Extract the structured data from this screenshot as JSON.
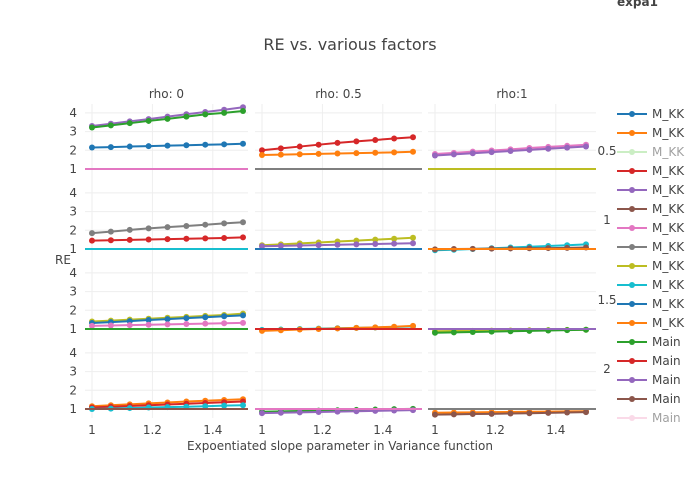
{
  "chart_data": {
    "type": "line",
    "title": "RE vs. various factors",
    "xlabel": "Expoentiated slope parameter in Variance function",
    "ylabel": "RE",
    "legend_title": "expa1",
    "legend_position": "right",
    "grid": true,
    "x": [
      1,
      1.0625,
      1.125,
      1.1875,
      1.25,
      1.3125,
      1.375,
      1.4375,
      1.5
    ],
    "xlim": [
      1,
      1.5
    ],
    "x_ticks": [
      "1",
      "1.2",
      "1.4"
    ],
    "y_ticks": [
      "1",
      "2",
      "3",
      "4"
    ],
    "ylim": [
      0.6,
      4.5
    ],
    "column_facets": [
      "rho: 0",
      "rho: 0.5",
      "rho:1"
    ],
    "row_facets": [
      "0.5",
      "1",
      "1.5",
      "2"
    ],
    "legend": [
      {
        "label": "M_KK",
        "color": "#1f77b4",
        "visible": true
      },
      {
        "label": "M_KK",
        "color": "#ff7f0e",
        "visible": true
      },
      {
        "label": "M_KK",
        "color": "#98df8a",
        "visible": false
      },
      {
        "label": "M_KK",
        "color": "#d62728",
        "visible": true
      },
      {
        "label": "M_KK",
        "color": "#9467bd",
        "visible": true
      },
      {
        "label": "M_KK",
        "color": "#8c564b",
        "visible": true
      },
      {
        "label": "M_KK",
        "color": "#e377c2",
        "visible": true
      },
      {
        "label": "M_KK",
        "color": "#7f7f7f",
        "visible": true
      },
      {
        "label": "M_KK",
        "color": "#bcbd22",
        "visible": true
      },
      {
        "label": "M_KK",
        "color": "#17becf",
        "visible": true
      },
      {
        "label": "M_KK",
        "color": "#1f77b4",
        "visible": true
      },
      {
        "label": "M_KK",
        "color": "#ff7f0e",
        "visible": true
      },
      {
        "label": "Main",
        "color": "#2ca02c",
        "visible": true
      },
      {
        "label": "Main",
        "color": "#d62728",
        "visible": true
      },
      {
        "label": "Main",
        "color": "#9467bd",
        "visible": true
      },
      {
        "label": "Main",
        "color": "#8c564b",
        "visible": true
      },
      {
        "label": "Main",
        "color": "#f7b6d2",
        "visible": false
      }
    ],
    "panels": [
      {
        "row": 0,
        "col": 0,
        "series": [
          {
            "name": "M_KK",
            "color": "#9467bd",
            "values": [
              3.3,
              3.42,
              3.55,
              3.67,
              3.8,
              3.93,
              4.05,
              4.17,
              4.3
            ]
          },
          {
            "name": "Main",
            "color": "#2ca02c",
            "values": [
              3.22,
              3.33,
              3.45,
              3.57,
              3.68,
              3.8,
              3.92,
              4.0,
              4.1
            ]
          },
          {
            "name": "M_KK",
            "color": "#1f77b4",
            "values": [
              2.15,
              2.17,
              2.2,
              2.22,
              2.25,
              2.27,
              2.3,
              2.32,
              2.35
            ]
          },
          {
            "name": "ref",
            "color": "#e377c2",
            "markers": false,
            "values": [
              1,
              1,
              1,
              1,
              1,
              1,
              1,
              1,
              1
            ]
          }
        ]
      },
      {
        "row": 0,
        "col": 1,
        "series": [
          {
            "name": "Main",
            "color": "#d62728",
            "values": [
              2.0,
              2.1,
              2.2,
              2.3,
              2.4,
              2.48,
              2.55,
              2.63,
              2.7
            ]
          },
          {
            "name": "M_KK",
            "color": "#ff7f0e",
            "values": [
              1.75,
              1.77,
              1.79,
              1.81,
              1.83,
              1.85,
              1.87,
              1.89,
              1.92
            ]
          },
          {
            "name": "ref",
            "color": "#7f7f7f",
            "markers": false,
            "values": [
              1,
              1,
              1,
              1,
              1,
              1,
              1,
              1,
              1
            ]
          }
        ]
      },
      {
        "row": 0,
        "col": 2,
        "series": [
          {
            "name": "M_KK",
            "color": "#e377c2",
            "values": [
              1.8,
              1.86,
              1.93,
              1.99,
              2.05,
              2.12,
              2.18,
              2.24,
              2.3
            ]
          },
          {
            "name": "Main",
            "color": "#9467bd",
            "values": [
              1.72,
              1.78,
              1.84,
              1.9,
              1.96,
              2.02,
              2.08,
              2.14,
              2.2
            ]
          },
          {
            "name": "ref",
            "color": "#bcbd22",
            "markers": false,
            "values": [
              1,
              1,
              1,
              1,
              1,
              1,
              1,
              1,
              1
            ]
          }
        ]
      },
      {
        "row": 1,
        "col": 0,
        "series": [
          {
            "name": "M_KK",
            "color": "#7f7f7f",
            "values": [
              1.85,
              1.93,
              2.02,
              2.1,
              2.17,
              2.23,
              2.3,
              2.37,
              2.43
            ]
          },
          {
            "name": "Main",
            "color": "#d62728",
            "values": [
              1.45,
              1.47,
              1.49,
              1.51,
              1.53,
              1.55,
              1.57,
              1.59,
              1.62
            ]
          },
          {
            "name": "ref",
            "color": "#17becf",
            "markers": false,
            "values": [
              1,
              1,
              1,
              1,
              1,
              1,
              1,
              1,
              1
            ]
          }
        ]
      },
      {
        "row": 1,
        "col": 1,
        "series": [
          {
            "name": "M_KK",
            "color": "#bcbd22",
            "values": [
              1.2,
              1.25,
              1.3,
              1.35,
              1.4,
              1.45,
              1.5,
              1.55,
              1.6
            ]
          },
          {
            "name": "Main",
            "color": "#9467bd",
            "values": [
              1.15,
              1.17,
              1.19,
              1.21,
              1.23,
              1.25,
              1.27,
              1.29,
              1.31
            ]
          },
          {
            "name": "ref",
            "color": "#1f77b4",
            "markers": false,
            "values": [
              1,
              1,
              1,
              1,
              1,
              1,
              1,
              1,
              1
            ]
          }
        ]
      },
      {
        "row": 1,
        "col": 2,
        "series": [
          {
            "name": "M_KK",
            "color": "#17becf",
            "values": [
              0.93,
              0.96,
              1.0,
              1.04,
              1.08,
              1.12,
              1.16,
              1.2,
              1.25
            ]
          },
          {
            "name": "Main",
            "color": "#8c564b",
            "values": [
              0.98,
              1.0,
              1.01,
              1.02,
              1.03,
              1.04,
              1.05,
              1.06,
              1.08
            ]
          },
          {
            "name": "ref",
            "color": "#ff7f0e",
            "markers": false,
            "values": [
              1,
              1,
              1,
              1,
              1,
              1,
              1,
              1,
              1
            ]
          }
        ]
      },
      {
        "row": 2,
        "col": 0,
        "series": [
          {
            "name": "M_KK",
            "color": "#bcbd22",
            "values": [
              1.4,
              1.45,
              1.5,
              1.55,
              1.6,
              1.65,
              1.7,
              1.75,
              1.82
            ]
          },
          {
            "name": "M_KK",
            "color": "#1f77b4",
            "values": [
              1.32,
              1.37,
              1.42,
              1.48,
              1.53,
              1.58,
              1.63,
              1.68,
              1.73
            ]
          },
          {
            "name": "M_KK",
            "color": "#e377c2",
            "values": [
              1.17,
              1.19,
              1.21,
              1.23,
              1.25,
              1.27,
              1.29,
              1.31,
              1.33
            ]
          },
          {
            "name": "ref",
            "color": "#2ca02c",
            "markers": false,
            "values": [
              1,
              1,
              1,
              1,
              1,
              1,
              1,
              1,
              1
            ]
          }
        ]
      },
      {
        "row": 2,
        "col": 1,
        "series": [
          {
            "name": "M_KK",
            "color": "#17becf",
            "values": [
              0.95,
              0.97,
              1.0,
              1.02,
              1.04,
              1.06,
              1.08,
              1.11,
              1.14
            ]
          },
          {
            "name": "M_KK",
            "color": "#ff7f0e",
            "values": [
              0.9,
              0.93,
              0.97,
              1.0,
              1.03,
              1.06,
              1.09,
              1.12,
              1.17
            ]
          },
          {
            "name": "ref",
            "color": "#d62728",
            "markers": false,
            "values": [
              1,
              1,
              1,
              1,
              1,
              1,
              1,
              1,
              1
            ]
          }
        ]
      },
      {
        "row": 2,
        "col": 2,
        "series": [
          {
            "name": "M_KK",
            "color": "#bcbd22",
            "values": [
              0.88,
              0.89,
              0.9,
              0.91,
              0.92,
              0.93,
              0.94,
              0.95,
              0.96
            ]
          },
          {
            "name": "Main",
            "color": "#2ca02c",
            "values": [
              0.8,
              0.82,
              0.84,
              0.86,
              0.88,
              0.9,
              0.92,
              0.94,
              0.96
            ]
          },
          {
            "name": "ref",
            "color": "#9467bd",
            "markers": false,
            "values": [
              1,
              1,
              1,
              1,
              1,
              1,
              1,
              1,
              1
            ]
          }
        ]
      },
      {
        "row": 3,
        "col": 0,
        "series": [
          {
            "name": "M_KK",
            "color": "#ff7f0e",
            "values": [
              1.15,
              1.2,
              1.25,
              1.3,
              1.35,
              1.4,
              1.44,
              1.48,
              1.52
            ]
          },
          {
            "name": "Main",
            "color": "#d62728",
            "values": [
              1.08,
              1.12,
              1.16,
              1.2,
              1.24,
              1.28,
              1.32,
              1.36,
              1.4
            ]
          },
          {
            "name": "M_KK",
            "color": "#17becf",
            "values": [
              1.0,
              1.02,
              1.05,
              1.08,
              1.1,
              1.12,
              1.15,
              1.18,
              1.2
            ]
          },
          {
            "name": "ref",
            "color": "#8c564b",
            "markers": false,
            "values": [
              1,
              1,
              1,
              1,
              1,
              1,
              1,
              1,
              1
            ]
          }
        ]
      },
      {
        "row": 3,
        "col": 1,
        "series": [
          {
            "name": "Main",
            "color": "#2ca02c",
            "values": [
              0.85,
              0.87,
              0.89,
              0.91,
              0.93,
              0.95,
              0.97,
              0.99,
              1.01
            ]
          },
          {
            "name": "Main",
            "color": "#9467bd",
            "values": [
              0.78,
              0.8,
              0.82,
              0.84,
              0.86,
              0.88,
              0.9,
              0.92,
              0.94
            ]
          },
          {
            "name": "ref",
            "color": "#e377c2",
            "markers": false,
            "values": [
              1,
              1,
              1,
              1,
              1,
              1,
              1,
              1,
              1
            ]
          }
        ]
      },
      {
        "row": 3,
        "col": 2,
        "series": [
          {
            "name": "M_KK",
            "color": "#ff7f0e",
            "values": [
              0.8,
              0.81,
              0.82,
              0.83,
              0.84,
              0.85,
              0.86,
              0.87,
              0.88
            ]
          },
          {
            "name": "Main",
            "color": "#8c564b",
            "values": [
              0.7,
              0.71,
              0.73,
              0.74,
              0.76,
              0.77,
              0.79,
              0.81,
              0.83
            ]
          },
          {
            "name": "ref",
            "color": "#7f7f7f",
            "markers": false,
            "values": [
              1,
              1,
              1,
              1,
              1,
              1,
              1,
              1,
              1
            ]
          }
        ]
      }
    ]
  }
}
